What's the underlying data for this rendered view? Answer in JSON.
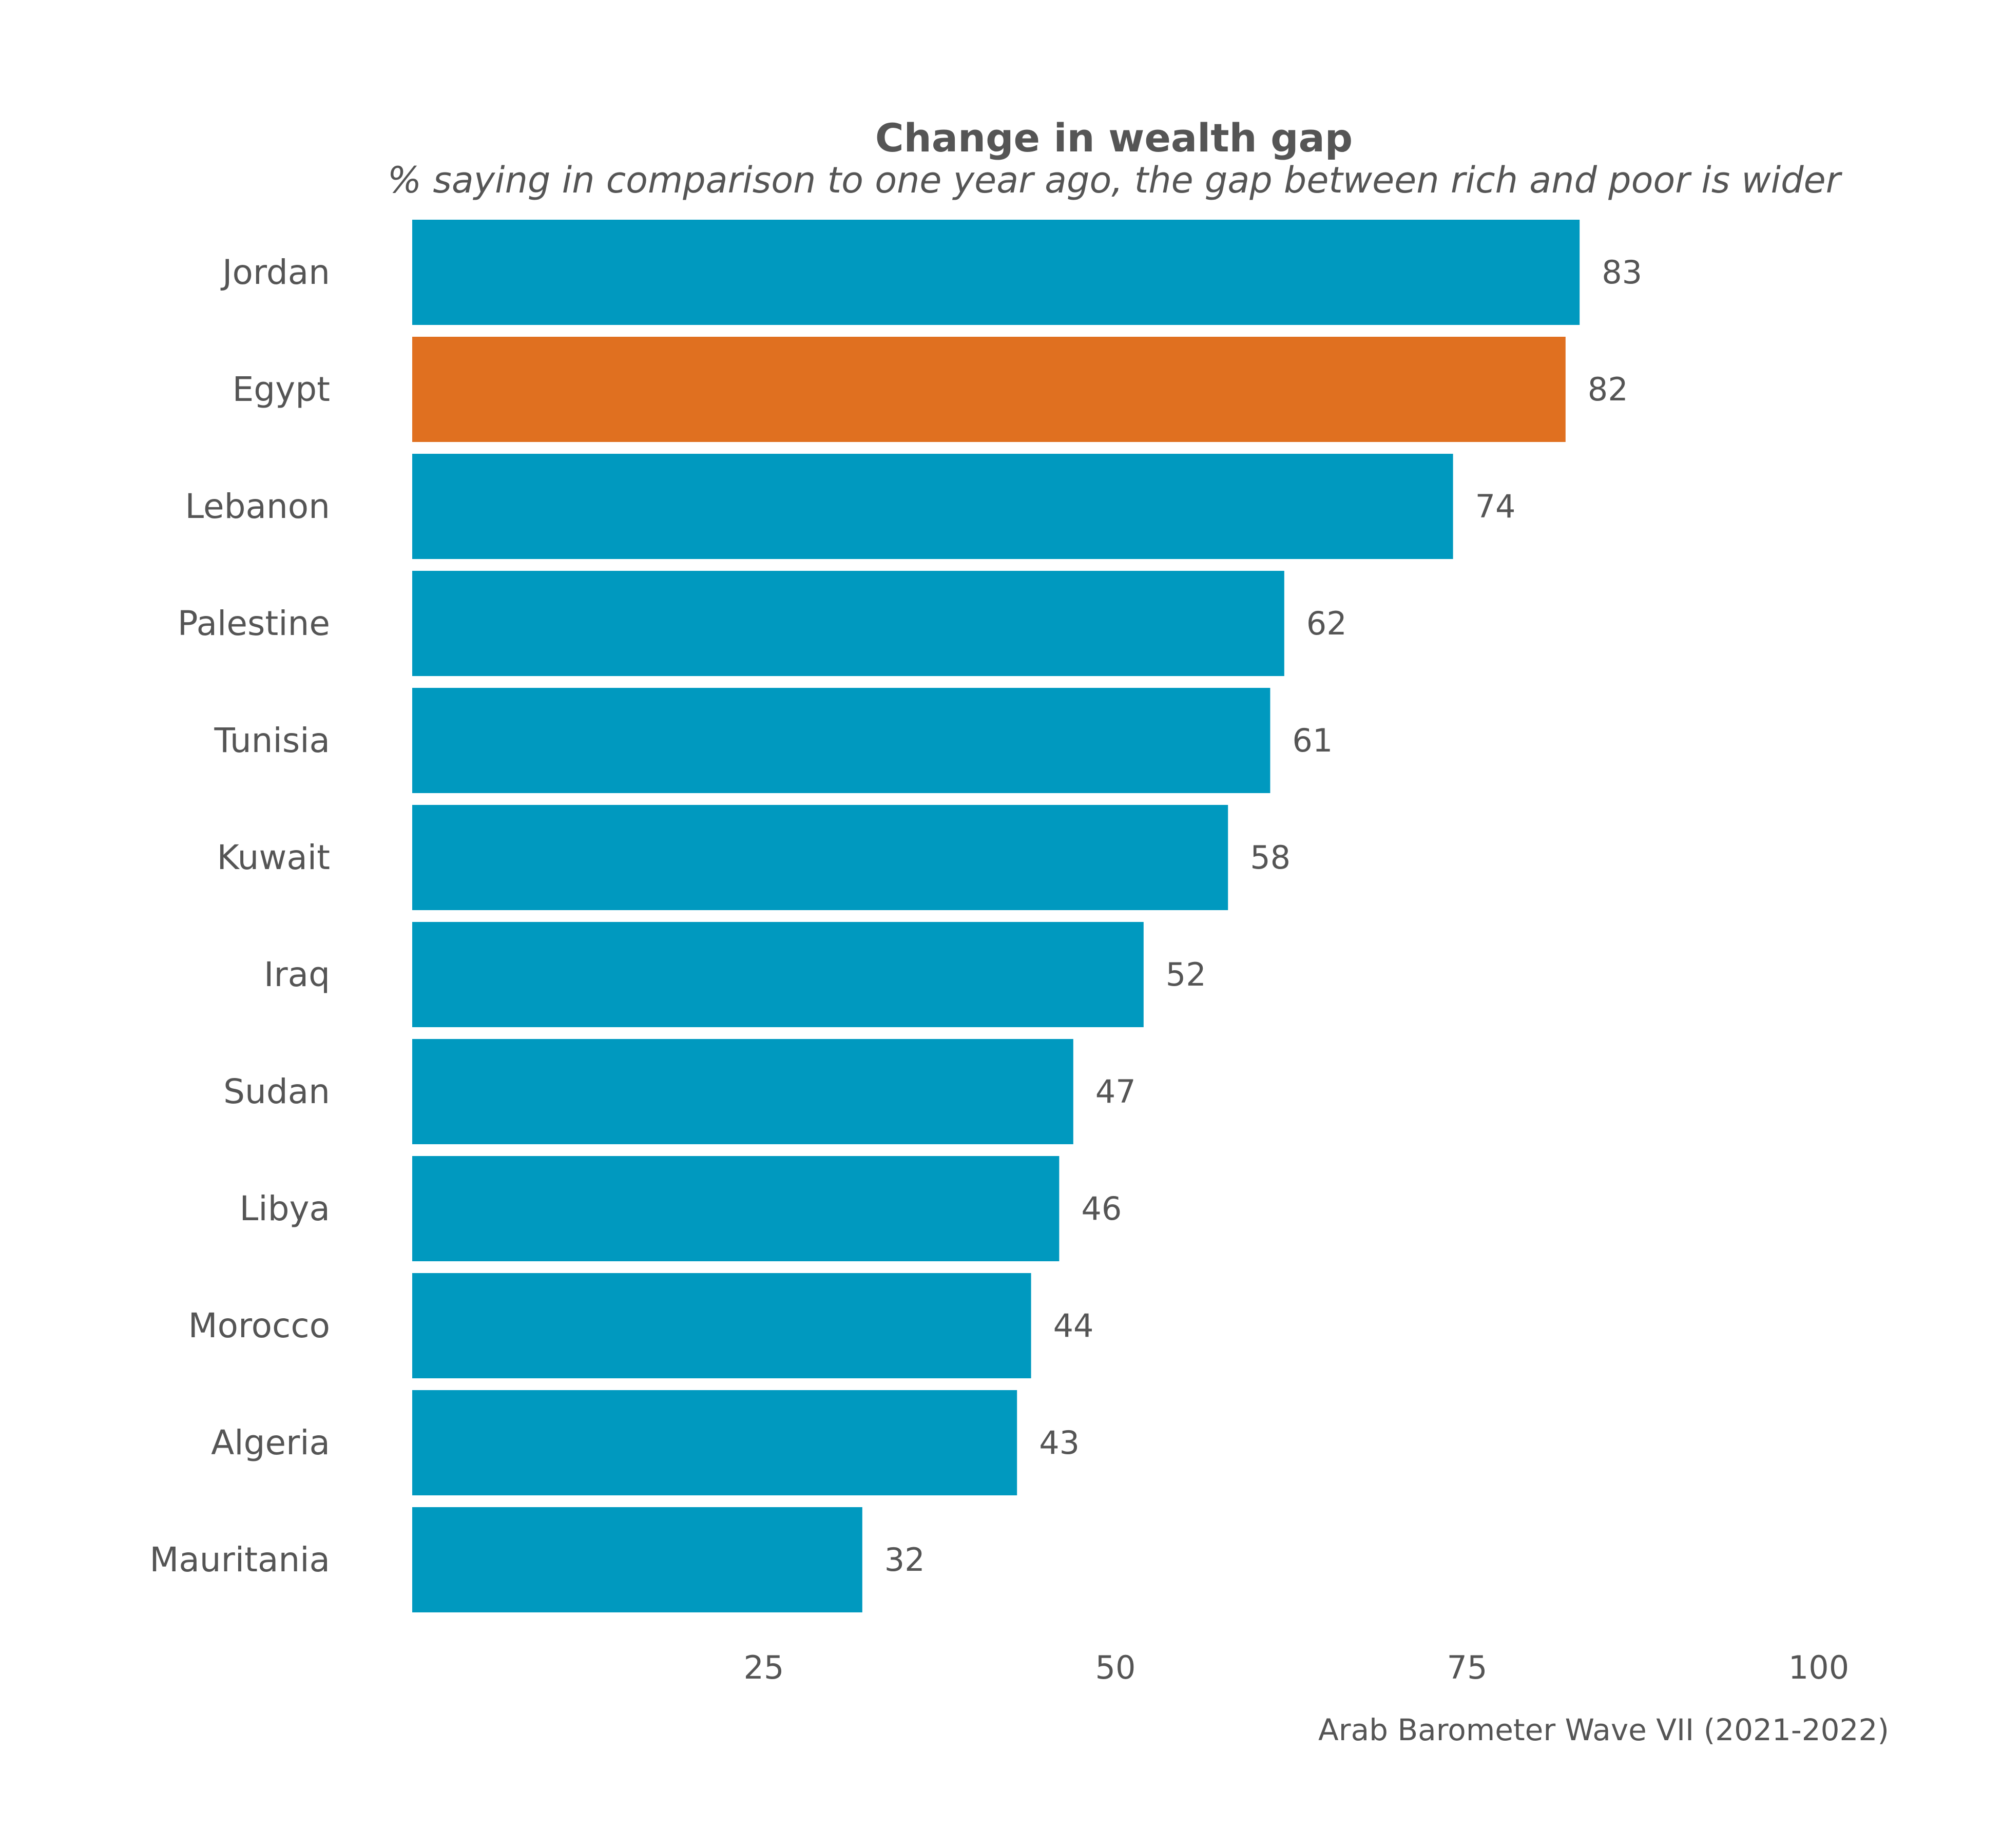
{
  "chart_data": {
    "type": "bar",
    "orientation": "horizontal",
    "title": "Change in wealth gap",
    "subtitle": "% saying in comparison to one year ago, the gap between rich and poor is wider",
    "caption": "Arab Barometer Wave VII (2021-2022)",
    "categories": [
      "Jordan",
      "Egypt",
      "Lebanon",
      "Palestine",
      "Tunisia",
      "Kuwait",
      "Iraq",
      "Sudan",
      "Libya",
      "Morocco",
      "Algeria",
      "Mauritania"
    ],
    "values": [
      83,
      82,
      74,
      62,
      61,
      58,
      52,
      47,
      46,
      44,
      43,
      32
    ],
    "data_labels": [
      "83",
      "82",
      "74",
      "62",
      "61",
      "58",
      "52",
      "47",
      "46",
      "44",
      "43",
      "32"
    ],
    "highlight_category": "Egypt",
    "colors": {
      "default": "#0099BF",
      "highlight": "#E07020"
    },
    "xlim": [
      0,
      100
    ],
    "xticks": [
      25,
      50,
      75,
      100
    ],
    "xtick_labels": [
      "25",
      "50",
      "75",
      "100"
    ],
    "grid": false,
    "legend": "none"
  }
}
